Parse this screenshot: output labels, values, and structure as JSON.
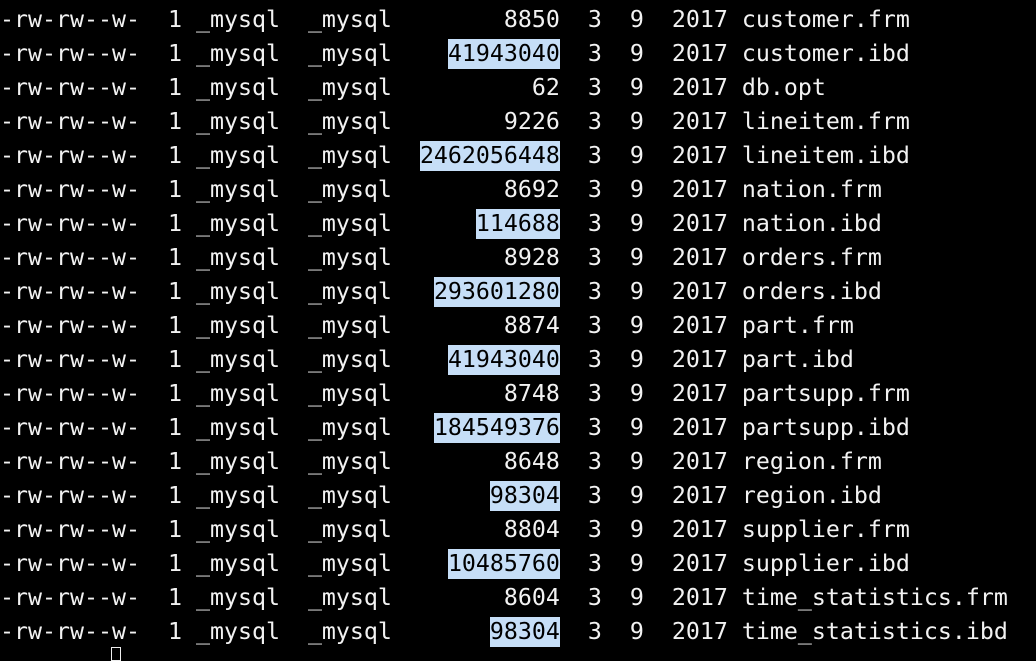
{
  "terminal": {
    "highlight_color": "#c6def7",
    "rows": [
      {
        "perms": "-rw-rw--w-",
        "links": "1",
        "owner": "_mysql",
        "group": "_mysql",
        "size": "8850",
        "highlighted": false,
        "month": "3",
        "day": "9",
        "year": "2017",
        "name": "customer.frm"
      },
      {
        "perms": "-rw-rw--w-",
        "links": "1",
        "owner": "_mysql",
        "group": "_mysql",
        "size": "41943040",
        "highlighted": true,
        "month": "3",
        "day": "9",
        "year": "2017",
        "name": "customer.ibd"
      },
      {
        "perms": "-rw-rw--w-",
        "links": "1",
        "owner": "_mysql",
        "group": "_mysql",
        "size": "62",
        "highlighted": false,
        "month": "3",
        "day": "9",
        "year": "2017",
        "name": "db.opt"
      },
      {
        "perms": "-rw-rw--w-",
        "links": "1",
        "owner": "_mysql",
        "group": "_mysql",
        "size": "9226",
        "highlighted": false,
        "month": "3",
        "day": "9",
        "year": "2017",
        "name": "lineitem.frm"
      },
      {
        "perms": "-rw-rw--w-",
        "links": "1",
        "owner": "_mysql",
        "group": "_mysql",
        "size": "2462056448",
        "highlighted": true,
        "month": "3",
        "day": "9",
        "year": "2017",
        "name": "lineitem.ibd"
      },
      {
        "perms": "-rw-rw--w-",
        "links": "1",
        "owner": "_mysql",
        "group": "_mysql",
        "size": "8692",
        "highlighted": false,
        "month": "3",
        "day": "9",
        "year": "2017",
        "name": "nation.frm"
      },
      {
        "perms": "-rw-rw--w-",
        "links": "1",
        "owner": "_mysql",
        "group": "_mysql",
        "size": "114688",
        "highlighted": true,
        "month": "3",
        "day": "9",
        "year": "2017",
        "name": "nation.ibd"
      },
      {
        "perms": "-rw-rw--w-",
        "links": "1",
        "owner": "_mysql",
        "group": "_mysql",
        "size": "8928",
        "highlighted": false,
        "month": "3",
        "day": "9",
        "year": "2017",
        "name": "orders.frm"
      },
      {
        "perms": "-rw-rw--w-",
        "links": "1",
        "owner": "_mysql",
        "group": "_mysql",
        "size": "293601280",
        "highlighted": true,
        "month": "3",
        "day": "9",
        "year": "2017",
        "name": "orders.ibd"
      },
      {
        "perms": "-rw-rw--w-",
        "links": "1",
        "owner": "_mysql",
        "group": "_mysql",
        "size": "8874",
        "highlighted": false,
        "month": "3",
        "day": "9",
        "year": "2017",
        "name": "part.frm"
      },
      {
        "perms": "-rw-rw--w-",
        "links": "1",
        "owner": "_mysql",
        "group": "_mysql",
        "size": "41943040",
        "highlighted": true,
        "month": "3",
        "day": "9",
        "year": "2017",
        "name": "part.ibd"
      },
      {
        "perms": "-rw-rw--w-",
        "links": "1",
        "owner": "_mysql",
        "group": "_mysql",
        "size": "8748",
        "highlighted": false,
        "month": "3",
        "day": "9",
        "year": "2017",
        "name": "partsupp.frm"
      },
      {
        "perms": "-rw-rw--w-",
        "links": "1",
        "owner": "_mysql",
        "group": "_mysql",
        "size": "184549376",
        "highlighted": true,
        "month": "3",
        "day": "9",
        "year": "2017",
        "name": "partsupp.ibd"
      },
      {
        "perms": "-rw-rw--w-",
        "links": "1",
        "owner": "_mysql",
        "group": "_mysql",
        "size": "8648",
        "highlighted": false,
        "month": "3",
        "day": "9",
        "year": "2017",
        "name": "region.frm"
      },
      {
        "perms": "-rw-rw--w-",
        "links": "1",
        "owner": "_mysql",
        "group": "_mysql",
        "size": "98304",
        "highlighted": true,
        "month": "3",
        "day": "9",
        "year": "2017",
        "name": "region.ibd"
      },
      {
        "perms": "-rw-rw--w-",
        "links": "1",
        "owner": "_mysql",
        "group": "_mysql",
        "size": "8804",
        "highlighted": false,
        "month": "3",
        "day": "9",
        "year": "2017",
        "name": "supplier.frm"
      },
      {
        "perms": "-rw-rw--w-",
        "links": "1",
        "owner": "_mysql",
        "group": "_mysql",
        "size": "10485760",
        "highlighted": true,
        "month": "3",
        "day": "9",
        "year": "2017",
        "name": "supplier.ibd"
      },
      {
        "perms": "-rw-rw--w-",
        "links": "1",
        "owner": "_mysql",
        "group": "_mysql",
        "size": "8604",
        "highlighted": false,
        "month": "3",
        "day": "9",
        "year": "2017",
        "name": "time_statistics.frm"
      },
      {
        "perms": "-rw-rw--w-",
        "links": "1",
        "owner": "_mysql",
        "group": "_mysql",
        "size": "98304",
        "highlighted": true,
        "month": "3",
        "day": "9",
        "year": "2017",
        "name": "time_statistics.ibd"
      }
    ]
  }
}
